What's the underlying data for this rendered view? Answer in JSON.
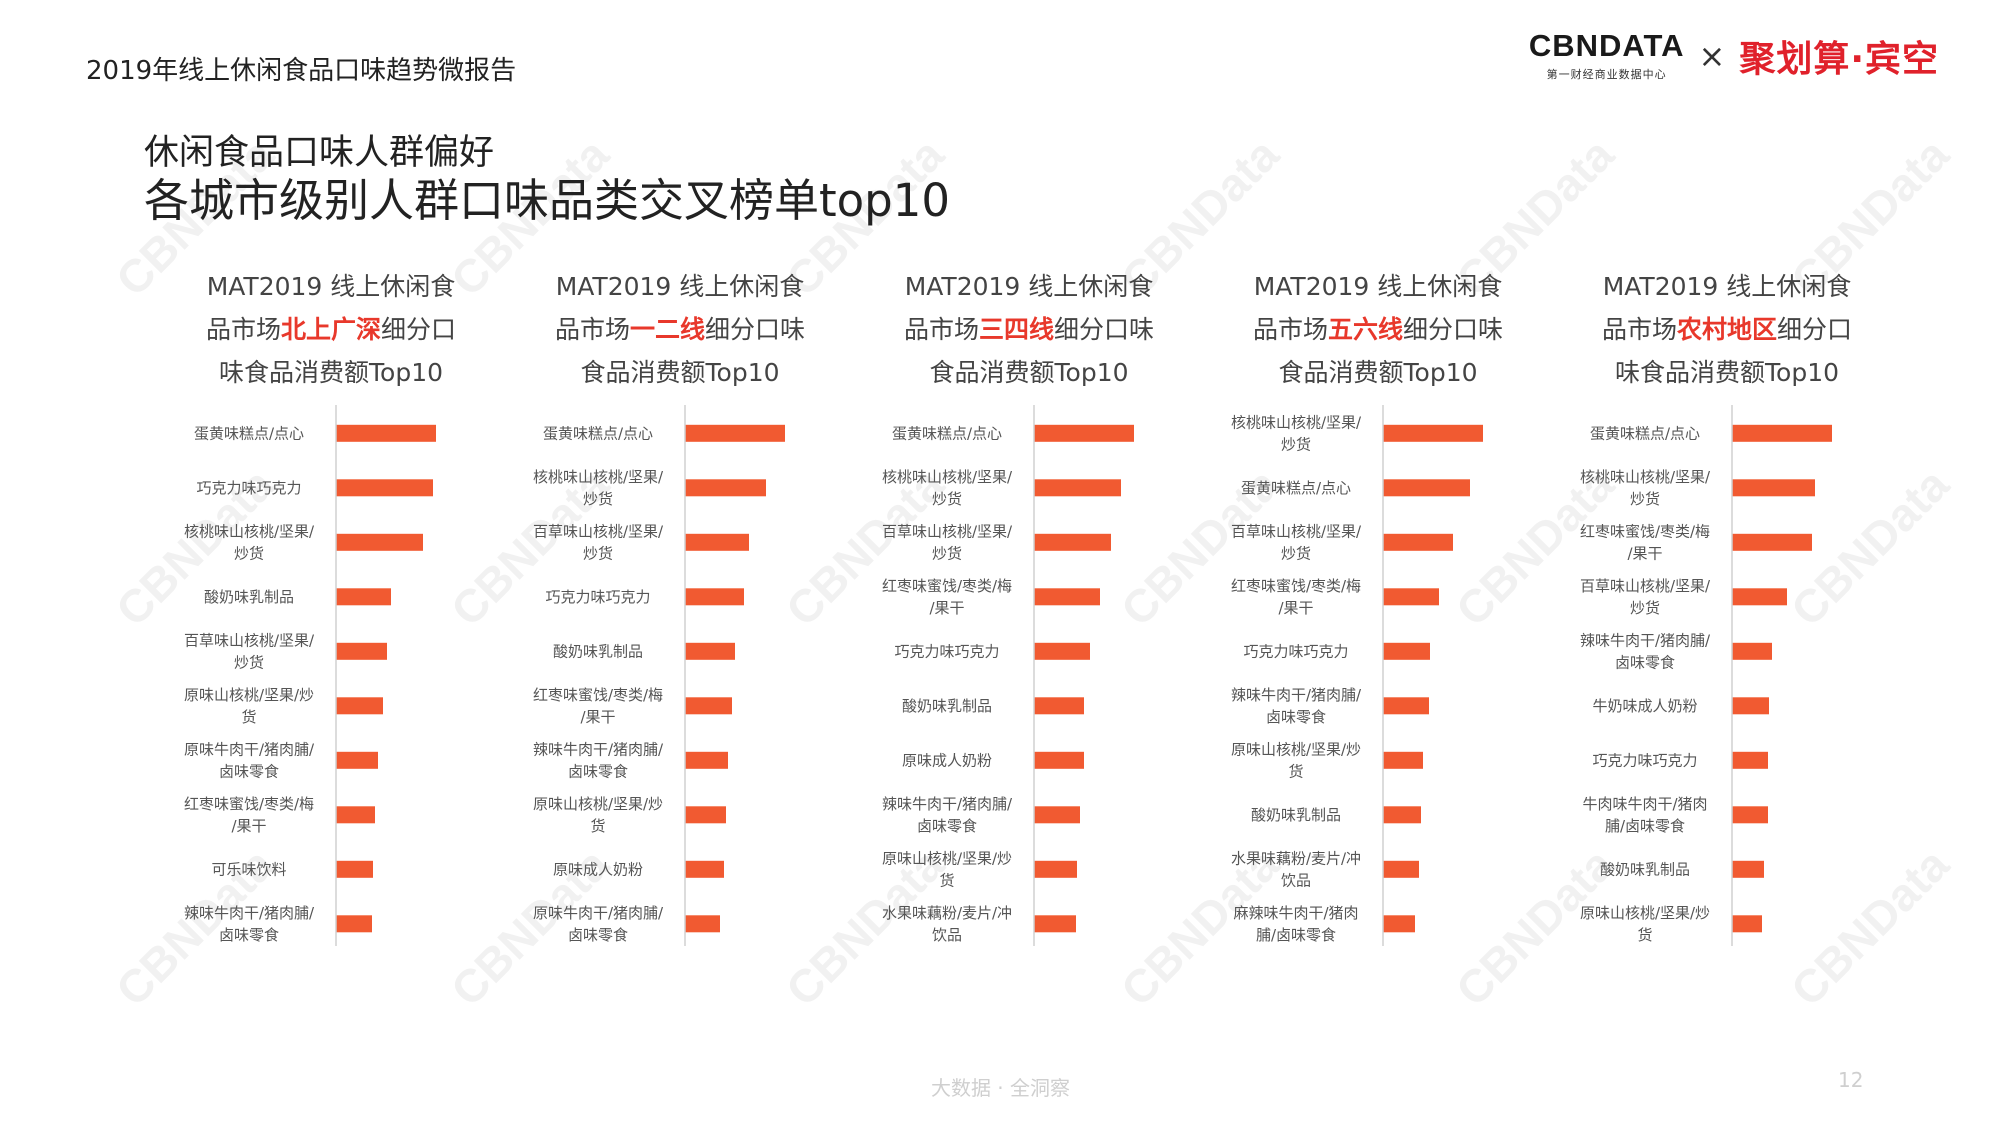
{
  "header": {
    "report_title": "2019年线上休闲食品口味趋势微报告",
    "logo_cbn": "CBNDATA",
    "logo_cbn_sub": "第一财经商业数据中心",
    "logo_times": "×",
    "logo_partner": "聚划算·宾空"
  },
  "watermark": "CBNData",
  "subtitle": "休闲食品口味人群偏好",
  "title": "各城市级别人群口味品类交叉榜单top10",
  "panels": [
    {
      "line1": "MAT2019 线上休闲食",
      "pre": "品市场",
      "hl": "北上广深",
      "post": "细分口",
      "line3": "味食品消费额Top10"
    },
    {
      "line1": "MAT2019 线上休闲食",
      "pre": "品市场",
      "hl": "一二线",
      "post": "细分口味",
      "line3": "食品消费额Top10"
    },
    {
      "line1": "MAT2019 线上休闲食",
      "pre": "品市场",
      "hl": "三四线",
      "post": "细分口味",
      "line3": "食品消费额Top10"
    },
    {
      "line1": "MAT2019 线上休闲食",
      "pre": "品市场",
      "hl": "五六线",
      "post": "细分口味",
      "line3": "食品消费额Top10"
    },
    {
      "line1": "MAT2019 线上休闲食",
      "pre": "品市场",
      "hl": "农村地区",
      "post": "细分口",
      "line3": "味食品消费额Top10"
    }
  ],
  "chart_data": [
    {
      "type": "bar",
      "orientation": "horizontal",
      "bar_color": "#f15a31",
      "categories": [
        [
          "蛋黄味糕点/点心"
        ],
        [
          "巧克力味巧克力"
        ],
        [
          "核桃味山核桃/坚果/",
          "炒货"
        ],
        [
          "酸奶味乳制品"
        ],
        [
          "百草味山核桃/坚果/",
          "炒货"
        ],
        [
          "原味山核桃/坚果/炒",
          "货"
        ],
        [
          "原味牛肉干/猪肉脯/",
          "卤味零食"
        ],
        [
          "红枣味蜜饯/枣类/梅",
          "/果干"
        ],
        [
          "可乐味饮料"
        ],
        [
          "辣味牛肉干/猪肉脯/",
          "卤味零食"
        ]
      ],
      "values": [
        100,
        97,
        87,
        55,
        51,
        47,
        42,
        39,
        37,
        36
      ]
    },
    {
      "type": "bar",
      "orientation": "horizontal",
      "bar_color": "#f15a31",
      "categories": [
        [
          "蛋黄味糕点/点心"
        ],
        [
          "核桃味山核桃/坚果/",
          "炒货"
        ],
        [
          "百草味山核桃/坚果/",
          "炒货"
        ],
        [
          "巧克力味巧克力"
        ],
        [
          "酸奶味乳制品"
        ],
        [
          "红枣味蜜饯/枣类/梅",
          "/果干"
        ],
        [
          "辣味牛肉干/猪肉脯/",
          "卤味零食"
        ],
        [
          "原味山核桃/坚果/炒",
          "货"
        ],
        [
          "原味成人奶粉"
        ],
        [
          "原味牛肉干/猪肉脯/",
          "卤味零食"
        ]
      ],
      "values": [
        100,
        81,
        64,
        59,
        50,
        47,
        43,
        41,
        39,
        35
      ]
    },
    {
      "type": "bar",
      "orientation": "horizontal",
      "bar_color": "#f15a31",
      "categories": [
        [
          "蛋黄味糕点/点心"
        ],
        [
          "核桃味山核桃/坚果/",
          "炒货"
        ],
        [
          "百草味山核桃/坚果/",
          "炒货"
        ],
        [
          "红枣味蜜饯/枣类/梅",
          "/果干"
        ],
        [
          "巧克力味巧克力"
        ],
        [
          "酸奶味乳制品"
        ],
        [
          "原味成人奶粉"
        ],
        [
          "辣味牛肉干/猪肉脯/",
          "卤味零食"
        ],
        [
          "原味山核桃/坚果/炒",
          "货"
        ],
        [
          "水果味藕粉/麦片/冲",
          "饮品"
        ]
      ],
      "values": [
        100,
        87,
        77,
        66,
        56,
        50,
        50,
        46,
        43,
        42
      ]
    },
    {
      "type": "bar",
      "orientation": "horizontal",
      "bar_color": "#f15a31",
      "categories": [
        [
          "核桃味山核桃/坚果/",
          "炒货"
        ],
        [
          "蛋黄味糕点/点心"
        ],
        [
          "百草味山核桃/坚果/",
          "炒货"
        ],
        [
          "红枣味蜜饯/枣类/梅",
          "/果干"
        ],
        [
          "巧克力味巧克力"
        ],
        [
          "辣味牛肉干/猪肉脯/",
          "卤味零食"
        ],
        [
          "原味山核桃/坚果/炒",
          "货"
        ],
        [
          "酸奶味乳制品"
        ],
        [
          "水果味藕粉/麦片/冲",
          "饮品"
        ],
        [
          "麻辣味牛肉干/猪肉",
          "脯/卤味零食"
        ]
      ],
      "values": [
        100,
        87,
        70,
        56,
        47,
        46,
        40,
        38,
        36,
        32
      ]
    },
    {
      "type": "bar",
      "orientation": "horizontal",
      "bar_color": "#f15a31",
      "categories": [
        [
          "蛋黄味糕点/点心"
        ],
        [
          "核桃味山核桃/坚果/",
          "炒货"
        ],
        [
          "红枣味蜜饯/枣类/梅",
          "/果干"
        ],
        [
          "百草味山核桃/坚果/",
          "炒货"
        ],
        [
          "辣味牛肉干/猪肉脯/",
          "卤味零食"
        ],
        [
          "牛奶味成人奶粉"
        ],
        [
          "巧克力味巧克力"
        ],
        [
          "牛肉味牛肉干/猪肉",
          "脯/卤味零食"
        ],
        [
          "酸奶味乳制品"
        ],
        [
          "原味山核桃/坚果/炒",
          "货"
        ]
      ],
      "values": [
        100,
        83,
        80,
        55,
        40,
        37,
        36,
        36,
        32,
        30
      ]
    }
  ],
  "footer": {
    "tagline": "大数据 · 全洞察",
    "page": "12"
  }
}
